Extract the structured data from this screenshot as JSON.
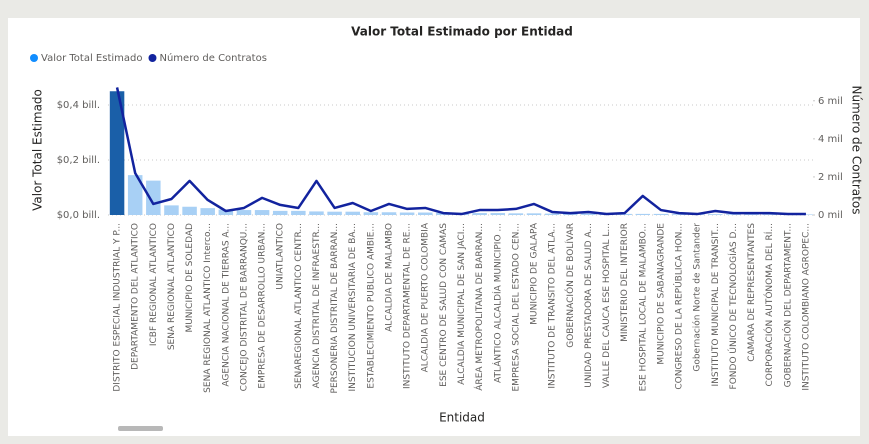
{
  "chart_data": {
    "type": "bar_line",
    "title": "Valor Total Estimado por Entidad",
    "x_label": "Entidad",
    "y_label": "Valor Total Estimado",
    "y2_label": "Número de Contratos",
    "categories": [
      "DISTRITO ESPECIAL INDUSTRIAL Y P...",
      "DEPARTAMENTO DEL ATLANTICO",
      "ICBF REGIONAL ATLANTICO",
      "SENA REGIONAL ATLANTICO",
      "MUNICIPIO DE SOLEDAD",
      "SENA REGIONAL ATLANTICO Interco...",
      "AGENCIA NACIONAL DE TIERRAS A...",
      "CONCEJO DISTRITAL DE BARRANQU...",
      "EMPRESA DE DESARROLLO URBAN...",
      "UNIATLANTICO",
      "SENAREGIONAL ATLANTICO CENTR...",
      "AGENCIA DISTRITAL DE INFRAESTR...",
      "PERSONERIA DISTRITAL DE BARRAN...",
      "INSTITUCION UNIVERSITARIA DE BA...",
      "ESTABLECIMIENTO PUBLICO AMBIE...",
      "ALCALDIA DE MALAMBO",
      "INSTITUTO DEPARTAMENTAL DE RE...",
      "ALCALDIA DE PUERTO COLOMBIA",
      "ESE CENTRO DE SALUD CON CAMAS",
      "ALCALDIA MUNICIPAL DE SAN JACI...",
      "ÁREA METROPOLITANA DE BARRAN...",
      "ATLÁNTICO ALCALDÍA MUNICIPIO ...",
      "EMPRESA SOCIAL DEL ESTADO CEN...",
      "MUNICIPIO DE GALAPA",
      "INSTITUTO DE TRANSITO DEL ATLA...",
      "GOBERNACIÓN DE BOLÍVAR",
      "UNIDAD PRESTADORA DE SALUD A...",
      "VALLE DEL CAUCA ESE HOSPITAL L...",
      "MINISTERIO DEL INTERIOR",
      "ESE HOSPITAL LOCAL DE MALAMBO...",
      "MUNICIPIO DE SABANAGRANDE",
      "CONGRESO DE LA REPÚBLICA HON...",
      "Gobernación Norte de Santander",
      "INSTITUTO MUNICIPAL DE TRANSIT...",
      "FONDO ÚNICO DE TECNOLOGÍAS D...",
      "CAMARA DE REPRESENTANTES",
      "CORPORACIÓN AUTÓNOMA DEL RÍ...",
      "GOBERNACIÓN DEL DEPARTAMENT...",
      "INSTITUTO COLOMBIANO AGROPEC..."
    ],
    "series": [
      {
        "name": "Valor Total Estimado",
        "color": "#118dff",
        "highlight_index": 0,
        "highlight_color": "#1a5fa8",
        "dim_color": "#a8d0f5",
        "values": [
          0.45,
          0.145,
          0.125,
          0.035,
          0.03,
          0.025,
          0.02,
          0.018,
          0.018,
          0.015,
          0.015,
          0.013,
          0.012,
          0.012,
          0.01,
          0.01,
          0.009,
          0.009,
          0.008,
          0.008,
          0.007,
          0.007,
          0.006,
          0.006,
          0.005,
          0.005,
          0.005,
          0.004,
          0.004,
          0.004,
          0.004,
          0.003,
          0.003,
          0.003,
          0.003,
          0.003,
          0.002,
          0.002,
          0.002
        ]
      },
      {
        "name": "Número de Contratos",
        "color": "#12239e",
        "axis": "y2",
        "values": [
          6700,
          2200,
          580,
          840,
          1790,
          790,
          210,
          370,
          900,
          530,
          370,
          1790,
          370,
          630,
          210,
          580,
          320,
          370,
          100,
          50,
          260,
          260,
          320,
          580,
          160,
          100,
          160,
          50,
          100,
          1000,
          260,
          100,
          50,
          210,
          100,
          100,
          100,
          50,
          50
        ]
      }
    ],
    "ylim": [
      0,
      0.45
    ],
    "yticks": [
      {
        "value": 0,
        "label": "$0,0 bill."
      },
      {
        "value": 0.2,
        "label": "$0,2 bill."
      },
      {
        "value": 0.4,
        "label": "$0,4 bill."
      }
    ],
    "y2lim": [
      0,
      6500
    ],
    "y2ticks": [
      {
        "value": 0,
        "label": "0 mil"
      },
      {
        "value": 2000,
        "label": "2 mil"
      },
      {
        "value": 4000,
        "label": "4 mil"
      },
      {
        "value": 6000,
        "label": "6 mil"
      }
    ],
    "grid": true,
    "legend": "top-left"
  }
}
